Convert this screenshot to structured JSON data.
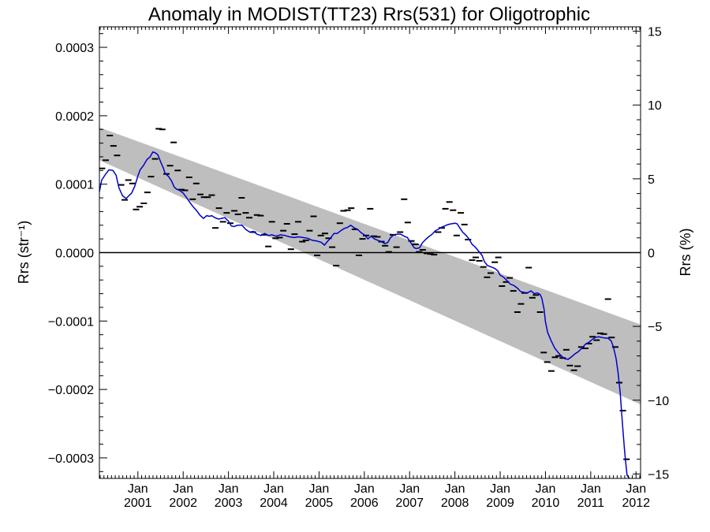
{
  "chart_data": {
    "type": "scatter",
    "title": "Anomaly in MODIST(TT23) Rrs(531) for Oligotrophic",
    "ylabel_left": "Rrs (str⁻¹)",
    "ylabel_right": "Rrs (%)",
    "xlabel": "",
    "x_range_years": [
      2000.15,
      2012.1
    ],
    "ylim": [
      -0.00033,
      0.00033
    ],
    "ylim_right": [
      -15.3,
      15.3
    ],
    "grid": false,
    "legend": "none",
    "colors": {
      "monthly_points": "#000000",
      "running_mean": "#0000cc",
      "uncertainty_band": "#bebebe",
      "zero_line": "#000000"
    },
    "x_ticks": [
      {
        "x": 2001.0,
        "top": "Jan",
        "bottom": "2001"
      },
      {
        "x": 2002.0,
        "top": "Jan",
        "bottom": "2002"
      },
      {
        "x": 2003.0,
        "top": "Jan",
        "bottom": "2003"
      },
      {
        "x": 2004.0,
        "top": "Jan",
        "bottom": "2004"
      },
      {
        "x": 2005.0,
        "top": "Jan",
        "bottom": "2005"
      },
      {
        "x": 2006.0,
        "top": "Jan",
        "bottom": "2006"
      },
      {
        "x": 2007.0,
        "top": "Jan",
        "bottom": "2007"
      },
      {
        "x": 2008.0,
        "top": "Jan",
        "bottom": "2008"
      },
      {
        "x": 2009.0,
        "top": "Jan",
        "bottom": "2009"
      },
      {
        "x": 2010.0,
        "top": "Jan",
        "bottom": "2010"
      },
      {
        "x": 2011.0,
        "top": "Jan",
        "bottom": "2011"
      },
      {
        "x": 2012.0,
        "top": "Jan",
        "bottom": "2012"
      }
    ],
    "y_ticks_left": [
      {
        "v": 0.0003,
        "label": "0.0003"
      },
      {
        "v": 0.0002,
        "label": "0.0002"
      },
      {
        "v": 0.0001,
        "label": "0.0001"
      },
      {
        "v": 0.0,
        "label": "0.0000"
      },
      {
        "v": -0.0001,
        "label": "−0.0001"
      },
      {
        "v": -0.0002,
        "label": "−0.0002"
      },
      {
        "v": -0.0003,
        "label": "−0.0003"
      }
    ],
    "y_ticks_right": [
      {
        "v": 15,
        "label": "15"
      },
      {
        "v": 10,
        "label": "10"
      },
      {
        "v": 5,
        "label": "5"
      },
      {
        "v": 0,
        "label": "0"
      },
      {
        "v": -5,
        "label": "−5"
      },
      {
        "v": -10,
        "label": "−10"
      },
      {
        "v": -15,
        "label": "−15"
      }
    ],
    "band": {
      "x": [
        2000.15,
        2012.1
      ],
      "upper": [
        0.000183,
        -0.000105
      ],
      "lower": [
        0.000135,
        -0.000222
      ]
    },
    "points": [
      [
        2000.21,
        0.000123
      ],
      [
        2000.29,
        0.000135
      ],
      [
        2000.38,
        0.000171
      ],
      [
        2000.46,
        0.000156
      ],
      [
        2000.54,
        0.000142
      ],
      [
        2000.63,
        9.9e-05
      ],
      [
        2000.71,
        7.7e-05
      ],
      [
        2000.79,
        0.000106
      ],
      [
        2000.88,
        0.000101
      ],
      [
        2000.96,
        6.3e-05
      ],
      [
        2001.04,
        6.7e-05
      ],
      [
        2001.13,
        7.2e-05
      ],
      [
        2001.21,
        8.8e-05
      ],
      [
        2001.29,
        0.000111
      ],
      [
        2001.38,
        0.000137
      ],
      [
        2001.46,
        0.000181
      ],
      [
        2001.54,
        0.00018
      ],
      [
        2001.63,
        0.000115
      ],
      [
        2001.71,
        0.000127
      ],
      [
        2001.79,
        0.000161
      ],
      [
        2001.88,
        0.00012
      ],
      [
        2001.96,
        9.2e-05
      ],
      [
        2002.04,
        9.1e-05
      ],
      [
        2002.13,
        0.00011
      ],
      [
        2002.21,
        7.8e-05
      ],
      [
        2002.29,
        0.000101
      ],
      [
        2002.38,
        8.5e-05
      ],
      [
        2002.46,
        8.1e-05
      ],
      [
        2002.54,
        8.1e-05
      ],
      [
        2002.63,
        8.4e-05
      ],
      [
        2002.71,
        3.6e-05
      ],
      [
        2002.79,
        6.5e-05
      ],
      [
        2002.88,
        4.5e-05
      ],
      [
        2002.96,
        5.8e-05
      ],
      [
        2003.04,
        4.3e-05
      ],
      [
        2003.13,
        6.1e-05
      ],
      [
        2003.21,
        5.6e-05
      ],
      [
        2003.29,
        8e-05
      ],
      [
        2003.38,
        5.8e-05
      ],
      [
        2003.46,
        5.1e-05
      ],
      [
        2003.54,
        3e-05
      ],
      [
        2003.63,
        5.5e-05
      ],
      [
        2003.71,
        5.4e-05
      ],
      [
        2003.79,
        2.6e-05
      ],
      [
        2003.88,
        9e-06
      ],
      [
        2003.96,
        4.5e-05
      ],
      [
        2004.04,
        2.1e-05
      ],
      [
        2004.13,
        2.2e-05
      ],
      [
        2004.21,
        3.2e-05
      ],
      [
        2004.29,
        4.2e-05
      ],
      [
        2004.38,
        5e-06
      ],
      [
        2004.46,
        2.7e-05
      ],
      [
        2004.54,
        4.5e-05
      ],
      [
        2004.63,
        1.6e-05
      ],
      [
        2004.71,
        1.8e-05
      ],
      [
        2004.79,
        3.2e-05
      ],
      [
        2004.88,
        5.3e-05
      ],
      [
        2004.96,
        -4e-06
      ],
      [
        2005.04,
        2.5e-05
      ],
      [
        2005.13,
        2.8e-05
      ],
      [
        2005.21,
        2.1e-05
      ],
      [
        2005.29,
        8e-06
      ],
      [
        2005.38,
        -1.9e-05
      ],
      [
        2005.46,
        4.3e-05
      ],
      [
        2005.54,
        6.1e-05
      ],
      [
        2005.63,
        6.2e-05
      ],
      [
        2005.71,
        6.5e-05
      ],
      [
        2005.79,
        3.4e-05
      ],
      [
        2005.88,
        -4e-06
      ],
      [
        2005.96,
        2e-05
      ],
      [
        2006.04,
        2.5e-05
      ],
      [
        2006.13,
        6.4e-05
      ],
      [
        2006.21,
        2.4e-05
      ],
      [
        2006.29,
        2.3e-05
      ],
      [
        2006.38,
        1.6e-05
      ],
      [
        2006.46,
        1e-05
      ],
      [
        2006.54,
        1e-06
      ],
      [
        2006.63,
        2.6e-05
      ],
      [
        2006.71,
        8e-06
      ],
      [
        2006.79,
        3e-05
      ],
      [
        2006.88,
        7.8e-05
      ],
      [
        2006.96,
        4.4e-05
      ],
      [
        2007.04,
        1.7e-05
      ],
      [
        2007.13,
        1.2e-05
      ],
      [
        2007.21,
        1e-06
      ],
      [
        2007.29,
        4e-06
      ],
      [
        2007.38,
        -1e-06
      ],
      [
        2007.46,
        -2e-06
      ],
      [
        2007.54,
        -3e-06
      ],
      [
        2007.63,
        3e-05
      ],
      [
        2007.71,
        3.6e-05
      ],
      [
        2007.79,
        6.4e-05
      ],
      [
        2007.88,
        7.4e-05
      ],
      [
        2007.96,
        6.2e-05
      ],
      [
        2008.04,
        2.5e-05
      ],
      [
        2008.13,
        5.8e-05
      ],
      [
        2008.21,
        4.1e-05
      ],
      [
        2008.29,
        1.9e-05
      ],
      [
        2008.38,
        -1.1e-05
      ],
      [
        2008.46,
        -7e-06
      ],
      [
        2008.54,
        -1.2e-05
      ],
      [
        2008.63,
        -2.1e-05
      ],
      [
        2008.71,
        -3.6e-05
      ],
      [
        2008.79,
        -3e-05
      ],
      [
        2008.88,
        -1.4e-05
      ],
      [
        2008.96,
        -7e-06
      ],
      [
        2009.04,
        -4.9e-05
      ],
      [
        2009.13,
        -4.3e-05
      ],
      [
        2009.21,
        -3.7e-05
      ],
      [
        2009.29,
        -5.6e-05
      ],
      [
        2009.38,
        -8.7e-05
      ],
      [
        2009.46,
        -7.5e-05
      ],
      [
        2009.54,
        -5.9e-05
      ],
      [
        2009.63,
        -2.2e-05
      ],
      [
        2009.71,
        -6.6e-05
      ],
      [
        2009.79,
        -6.2e-05
      ],
      [
        2009.88,
        -8.7e-05
      ],
      [
        2009.96,
        -0.000146
      ],
      [
        2010.04,
        -0.00016
      ],
      [
        2010.13,
        -0.000173
      ],
      [
        2010.21,
        -0.000153
      ],
      [
        2010.29,
        -0.000151
      ],
      [
        2010.38,
        -0.000154
      ],
      [
        2010.46,
        -0.000142
      ],
      [
        2010.54,
        -0.000165
      ],
      [
        2010.63,
        -0.000172
      ],
      [
        2010.71,
        -0.000166
      ],
      [
        2010.79,
        -0.000138
      ],
      [
        2010.88,
        -0.00014
      ],
      [
        2010.96,
        -0.000133
      ],
      [
        2011.04,
        -0.000123
      ],
      [
        2011.13,
        -0.000128
      ],
      [
        2011.21,
        -0.000118
      ],
      [
        2011.29,
        -0.000119
      ],
      [
        2011.38,
        -6.8e-05
      ],
      [
        2011.46,
        -0.000124
      ],
      [
        2011.54,
        -0.000138
      ],
      [
        2011.63,
        -0.00019
      ],
      [
        2011.71,
        -0.000231
      ],
      [
        2011.79,
        -0.000302
      ]
    ],
    "running_mean": {
      "x": [
        2000.15,
        2000.2,
        2000.28,
        2000.36,
        2000.45,
        2000.52,
        2000.58,
        2000.66,
        2000.74,
        2000.8,
        2000.86,
        2000.93,
        2001.0,
        2001.05,
        2001.12,
        2001.2,
        2001.27,
        2001.33,
        2001.38,
        2001.44,
        2001.5,
        2001.56,
        2001.6,
        2001.68,
        2001.75,
        2001.8,
        2001.85,
        2001.92,
        2002.0,
        2002.08,
        2002.15,
        2002.22,
        2002.3,
        2002.38,
        2002.45,
        2002.52,
        2002.58,
        2002.63,
        2002.7,
        2002.78,
        2002.85,
        2002.92,
        2003.0,
        2003.06,
        2003.12,
        2003.2,
        2003.3,
        2003.38,
        2003.47,
        2003.55,
        2003.63,
        2003.72,
        2003.8,
        2003.88,
        2003.96,
        2004.05,
        2004.15,
        2004.25,
        2004.35,
        2004.45,
        2004.55,
        2004.65,
        2004.75,
        2004.85,
        2004.95,
        2005.05,
        2005.12,
        2005.18,
        2005.25,
        2005.33,
        2005.4,
        2005.48,
        2005.55,
        2005.63,
        2005.7,
        2005.78,
        2005.85,
        2005.93,
        2006.0,
        2006.08,
        2006.15,
        2006.22,
        2006.3,
        2006.38,
        2006.45,
        2006.52,
        2006.58,
        2006.65,
        2006.72,
        2006.8,
        2006.88,
        2006.95,
        2007.02,
        2007.1,
        2007.15,
        2007.22,
        2007.28,
        2007.35,
        2007.42,
        2007.5,
        2007.57,
        2007.63,
        2007.7,
        2007.78,
        2007.85,
        2007.92,
        2008.0,
        2008.05,
        2008.1,
        2008.17,
        2008.25,
        2008.32,
        2008.38,
        2008.45,
        2008.5,
        2008.55,
        2008.6,
        2008.65,
        2008.72,
        2008.8,
        2008.88,
        2008.95,
        2009.0,
        2009.08,
        2009.15,
        2009.22,
        2009.3,
        2009.38,
        2009.45,
        2009.52,
        2009.6,
        2009.68,
        2009.75,
        2009.82,
        2009.88,
        2009.92,
        2009.97,
        2010.0,
        2010.05,
        2010.12,
        2010.2,
        2010.28,
        2010.35,
        2010.42,
        2010.5,
        2010.58,
        2010.65,
        2010.72,
        2010.8,
        2010.88,
        2010.96,
        2011.03,
        2011.1,
        2011.17,
        2011.25,
        2011.32,
        2011.38,
        2011.45,
        2011.5,
        2011.56,
        2011.6,
        2011.65,
        2011.7,
        2011.75,
        2011.8,
        2011.85
      ],
      "y": [
        8.9e-05,
        0.000106,
        0.000114,
        0.000121,
        0.00012,
        0.000113,
        9.5e-05,
        8.3e-05,
        7.9e-05,
        8.3e-05,
        8.7e-05,
        9.7e-05,
        0.000112,
        0.000121,
        0.000127,
        0.000136,
        0.00014,
        0.000147,
        0.000146,
        0.000143,
        0.000133,
        0.000124,
        0.000116,
        0.000111,
        0.000104,
        9.6e-05,
        9.3e-05,
        9.1e-05,
        8.7e-05,
        8e-05,
        7.3e-05,
        6.7e-05,
        6.1e-05,
        5.4e-05,
        5e-05,
        5.4e-05,
        5.3e-05,
        5.4e-05,
        5.1e-05,
        4.9e-05,
        5e-05,
        5.1e-05,
        4.6e-05,
        3.9e-05,
        3.8e-05,
        4e-05,
        4e-05,
        3.4e-05,
        3e-05,
        3.1e-05,
        2.7e-05,
        2.5e-05,
        2.8e-05,
        2.5e-05,
        2.6e-05,
        2.4e-05,
        2.6e-05,
        2.5e-05,
        2.3e-05,
        2.2e-05,
        2.3e-05,
        2.2e-05,
        2.1e-05,
        1.8e-05,
        1.7e-05,
        1.5e-05,
        1.1e-05,
        1.6e-05,
        2.1e-05,
        2.8e-05,
        2.8e-05,
        3.2e-05,
        3.5e-05,
        3.7e-05,
        4e-05,
        3.6e-05,
        3.4e-05,
        2.9e-05,
        2.6e-05,
        2e-05,
        2.4e-05,
        2e-05,
        1.8e-05,
        1.6e-05,
        1.3e-05,
        1.5e-05,
        2.2e-05,
        2.6e-05,
        2.7e-05,
        2.7e-05,
        2.4e-05,
        2.2e-05,
        1.5e-05,
        7e-06,
        6e-06,
        7e-06,
        1.4e-05,
        1.9e-05,
        2.3e-05,
        2.7e-05,
        3.2e-05,
        3.4e-05,
        3.7e-05,
        3.9e-05,
        4.1e-05,
        4.2e-05,
        4.3e-05,
        4.2e-05,
        3.7e-05,
        3e-05,
        2.5e-05,
        1.9e-05,
        1.2e-05,
        8e-06,
        4e-06,
        0.0,
        -4e-06,
        -1.3e-05,
        -1.9e-05,
        -2.1e-05,
        -2.3e-05,
        -2.7e-05,
        -3.3e-05,
        -3.6e-05,
        -4.1e-05,
        -4.6e-05,
        -4.8e-05,
        -5.2e-05,
        -5.7e-05,
        -5.8e-05,
        -5.9e-05,
        -5.6e-05,
        -6e-05,
        -5.9e-05,
        -6.1e-05,
        -6.7e-05,
        -8.3e-05,
        -0.000101,
        -0.000117,
        -0.000128,
        -0.000139,
        -0.000146,
        -0.000151,
        -0.000155,
        -0.000156,
        -0.000152,
        -0.000148,
        -0.000145,
        -0.00014,
        -0.000134,
        -0.000131,
        -0.000127,
        -0.000124,
        -0.000123,
        -0.000124,
        -0.000125,
        -0.000125,
        -0.000129,
        -0.000138,
        -0.000155,
        -0.000174,
        -0.000205,
        -0.00025,
        -0.000292,
        -0.000325,
        -0.000333
      ]
    }
  }
}
